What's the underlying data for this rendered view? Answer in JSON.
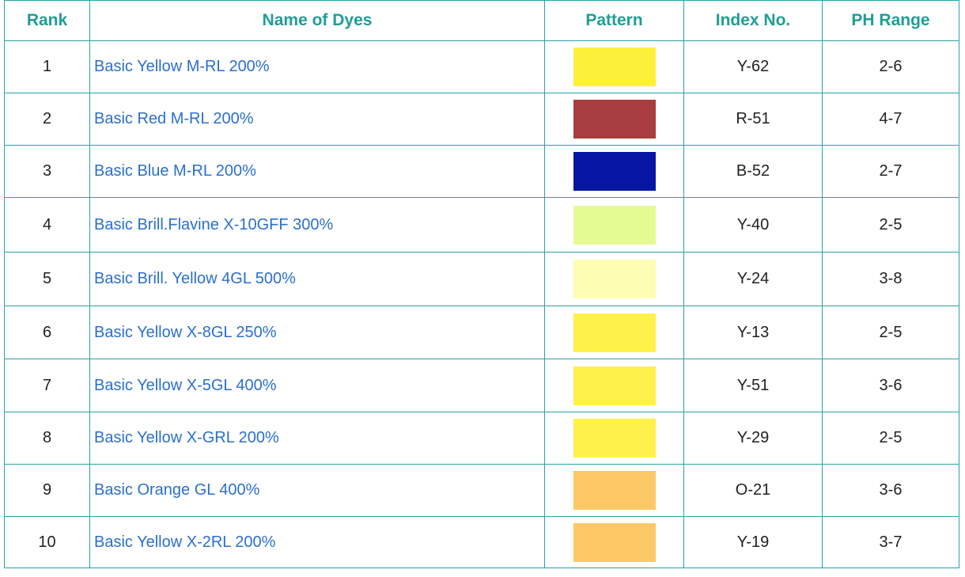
{
  "headers": {
    "rank": "Rank",
    "name": "Name of Dyes",
    "pattern": "Pattern",
    "index": "Index No.",
    "ph": "PH Range"
  },
  "rows": [
    {
      "rank": "1",
      "name": "Basic Yellow M-RL 200%",
      "color": "#fdf03a",
      "index": "Y-62",
      "ph": "2-6"
    },
    {
      "rank": "2",
      "name": "Basic Red M-RL 200%",
      "color": "#a83d3f",
      "index": "R-51",
      "ph": "4-7"
    },
    {
      "rank": "3",
      "name": "Basic Blue M-RL 200%",
      "color": "#0616a3",
      "index": "B-52",
      "ph": "2-7"
    },
    {
      "rank": "4",
      "name": "Basic Brill.Flavine X-10GFF 300%",
      "color": "#e3fb92",
      "index": "Y-40",
      "ph": "2-5"
    },
    {
      "rank": "5",
      "name": "Basic Brill. Yellow 4GL 500%",
      "color": "#fdfdb4",
      "index": "Y-24",
      "ph": "3-8"
    },
    {
      "rank": "6",
      "name": "Basic Yellow X-8GL 250%",
      "color": "#fdf14a",
      "index": "Y-13",
      "ph": "2-5"
    },
    {
      "rank": "7",
      "name": "Basic Yellow X-5GL 400%",
      "color": "#fdf14a",
      "index": "Y-51",
      "ph": "3-6"
    },
    {
      "rank": "8",
      "name": "Basic Yellow X-GRL 200%",
      "color": "#fdf14a",
      "index": "Y-29",
      "ph": "2-5"
    },
    {
      "rank": "9",
      "name": "Basic Orange GL 400%",
      "color": "#fcc866",
      "index": "O-21",
      "ph": "3-6"
    },
    {
      "rank": "10",
      "name": "Basic Yellow X-2RL 200%",
      "color": "#fcc866",
      "index": "Y-19",
      "ph": "3-7"
    }
  ]
}
